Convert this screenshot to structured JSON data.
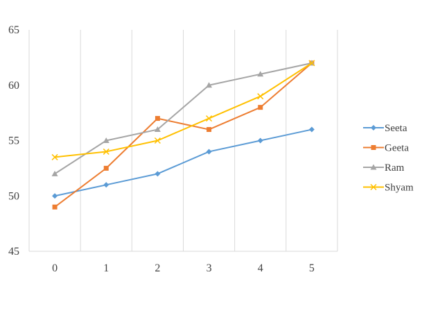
{
  "chart_data": {
    "type": "line",
    "x": [
      0,
      1,
      2,
      3,
      4,
      5
    ],
    "xlim": [
      -0.5,
      5.5
    ],
    "ylim": [
      45,
      65
    ],
    "yticks": [
      45,
      50,
      55,
      60,
      65
    ],
    "grid": "vertical-between-categories",
    "legend_position": "right",
    "series": [
      {
        "name": "Seeta",
        "values": [
          50,
          51,
          52,
          54,
          55,
          56
        ],
        "color": "#5B9BD5",
        "marker": "diamond"
      },
      {
        "name": "Geeta",
        "values": [
          49,
          52.5,
          57,
          56,
          58,
          62
        ],
        "color": "#ED7D31",
        "marker": "square"
      },
      {
        "name": "Ram",
        "values": [
          52,
          55,
          56,
          60,
          61,
          62
        ],
        "color": "#A5A5A5",
        "marker": "triangle"
      },
      {
        "name": "Shyam",
        "values": [
          53.5,
          54,
          55,
          57,
          59,
          62
        ],
        "color": "#FFC000",
        "marker": "x"
      }
    ]
  }
}
